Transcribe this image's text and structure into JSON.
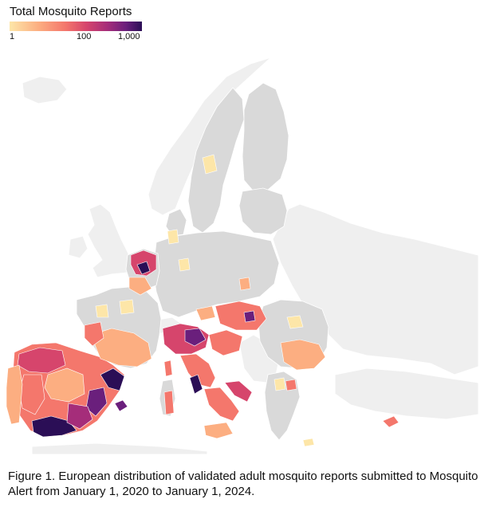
{
  "legend": {
    "title": "Total Mosquito Reports",
    "ticks": [
      "1",
      "100",
      "1,000"
    ],
    "colors": [
      "#fde6a8",
      "#fcae81",
      "#f4776c",
      "#d6456c",
      "#a52d7a",
      "#6a1f7c",
      "#2b0e56"
    ]
  },
  "map": {
    "land_no_data_color": "#d9d9d9",
    "non_eu_land_color": "#efefef",
    "region_border_color": "#ffffff",
    "regions": [
      {
        "name": "Spain",
        "level": "high"
      },
      {
        "name": "Italy",
        "level": "high"
      },
      {
        "name": "Netherlands",
        "level": "high"
      },
      {
        "name": "Croatia",
        "level": "medium"
      },
      {
        "name": "Hungary",
        "level": "medium"
      },
      {
        "name": "Romania",
        "level": "low"
      },
      {
        "name": "Portugal",
        "level": "medium"
      },
      {
        "name": "France",
        "level": "low"
      },
      {
        "name": "Greece",
        "level": "low"
      },
      {
        "name": "Cyprus",
        "level": "medium"
      }
    ]
  },
  "caption": "Figure 1. European distribution of validated adult mosquito reports submitted to Mosquito Alert from January 1, 2020 to January 1, 2024."
}
